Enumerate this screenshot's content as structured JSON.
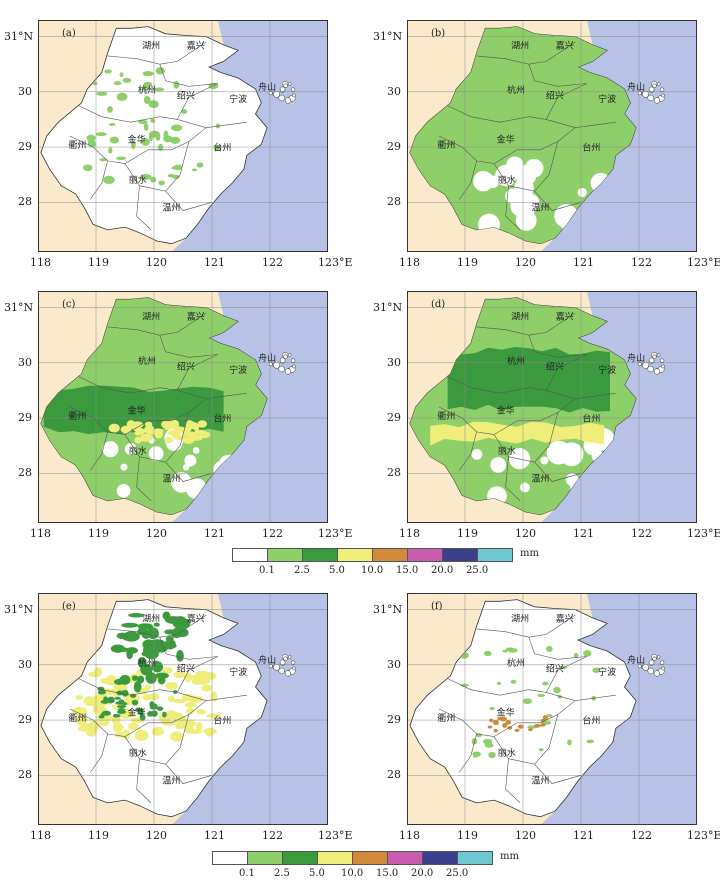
{
  "panels": [
    {
      "id": "a",
      "label": "(a)"
    },
    {
      "id": "b",
      "label": "(b)"
    },
    {
      "id": "c",
      "label": "(c)"
    },
    {
      "id": "d",
      "label": "(d)"
    },
    {
      "id": "e",
      "label": "(e)"
    },
    {
      "id": "f",
      "label": "(f)"
    }
  ],
  "lat_labels": [
    "31°N",
    "30",
    "29",
    "28"
  ],
  "lon_labels": [
    "118",
    "119",
    "120",
    "121",
    "122",
    "123°E"
  ],
  "cities": [
    "湖州",
    "嘉兴",
    "杭州",
    "绍兴",
    "宁波",
    "舟山",
    "衢州",
    "金华",
    "台州",
    "丽水",
    "温州"
  ],
  "legend": {
    "ticks": [
      "0.1",
      "2.5",
      "5.0",
      "10.0",
      "15.0",
      "20.0",
      "25.0"
    ],
    "unit": "mm",
    "colors": [
      "#ffffff",
      "#8fcf6a",
      "#3b9a3e",
      "#f0ee7a",
      "#d08a3a",
      "#c85cae",
      "#3c3f8c",
      "#6fc7cf"
    ]
  },
  "colors": {
    "land": "#faeacb",
    "sea": "#b7c2e6",
    "province": "#ffffff",
    "grid": "#8a8a8a"
  }
}
